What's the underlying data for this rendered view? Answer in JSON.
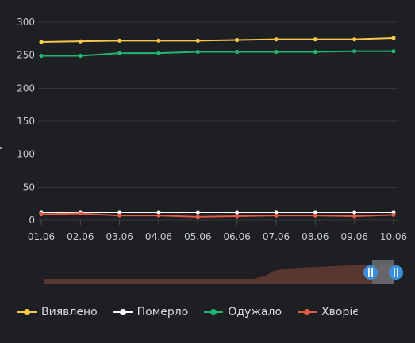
{
  "chart_data": {
    "type": "line",
    "categories": [
      "01.06",
      "02.06",
      "03.06",
      "04.06",
      "05.06",
      "06.06",
      "07.06",
      "08.06",
      "09.06",
      "10.06"
    ],
    "ylim": [
      0,
      300
    ],
    "yticks": [
      0,
      50,
      100,
      150,
      200,
      250,
      300
    ],
    "grid": true,
    "legend_position": "bottom-left",
    "series": [
      {
        "name": "Виявлено",
        "color": "#f5c84c",
        "values": [
          270,
          271,
          272,
          272,
          272,
          273,
          274,
          274,
          274,
          276
        ]
      },
      {
        "name": "Померло",
        "color": "#ffffff",
        "values": [
          12,
          12,
          12,
          12,
          12,
          12,
          12,
          12,
          12,
          12
        ]
      },
      {
        "name": "Одужало",
        "color": "#22b573",
        "values": [
          249,
          249,
          253,
          253,
          255,
          255,
          255,
          255,
          256,
          256
        ]
      },
      {
        "name": "Хворіє",
        "color": "#e05a45",
        "values": [
          9,
          10,
          7,
          7,
          5,
          6,
          7,
          7,
          6,
          8
        ]
      }
    ],
    "navigator": {
      "fill_color": "#5a3630",
      "handle_color": "#3b8fd9",
      "window_color": "#6a6d72"
    }
  }
}
